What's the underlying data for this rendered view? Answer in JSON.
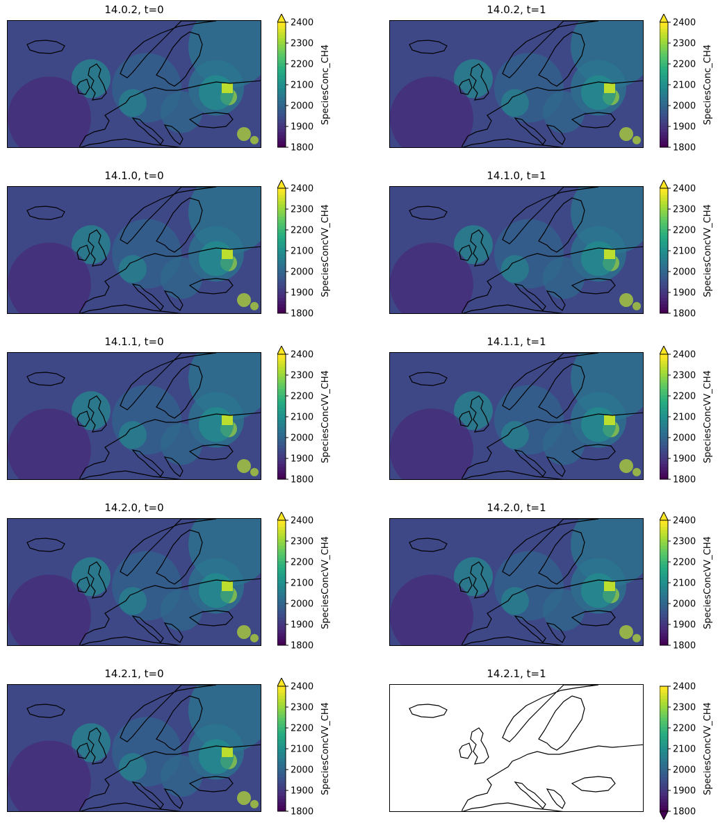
{
  "colorbar": {
    "min": 1800,
    "max": 2400,
    "ticks": [
      "1800",
      "1900",
      "2000",
      "2100",
      "2200",
      "2300",
      "2400"
    ],
    "colors": [
      "#440154",
      "#472c7a",
      "#3b518b",
      "#2c718e",
      "#21908d",
      "#27ad81",
      "#5cc863",
      "#aadc32",
      "#fde725"
    ]
  },
  "panels": [
    {
      "title": "14.0.2, t=0",
      "cbar_label": "SpeciesConc_CH4",
      "empty": false,
      "extend": "max"
    },
    {
      "title": "14.0.2, t=1",
      "cbar_label": "SpeciesConc_CH4",
      "empty": false,
      "extend": "max"
    },
    {
      "title": "14.1.0, t=0",
      "cbar_label": "SpeciesConcVV_CH4",
      "empty": false,
      "extend": "max"
    },
    {
      "title": "14.1.0, t=1",
      "cbar_label": "SpeciesConcVV_CH4",
      "empty": false,
      "extend": "max"
    },
    {
      "title": "14.1.1, t=0",
      "cbar_label": "SpeciesConcVV_CH4",
      "empty": false,
      "extend": "max"
    },
    {
      "title": "14.1.1, t=1",
      "cbar_label": "SpeciesConcVV_CH4",
      "empty": false,
      "extend": "max"
    },
    {
      "title": "14.2.0, t=0",
      "cbar_label": "SpeciesConcVV_CH4",
      "empty": false,
      "extend": "max"
    },
    {
      "title": "14.2.0, t=1",
      "cbar_label": "SpeciesConcVV_CH4",
      "empty": false,
      "extend": "max"
    },
    {
      "title": "14.2.1, t=0",
      "cbar_label": "SpeciesConcVV_CH4",
      "empty": false,
      "extend": "max"
    },
    {
      "title": "14.2.1, t=1",
      "cbar_label": "SpeciesConcVV_CH4",
      "empty": true,
      "extend": "min"
    }
  ],
  "chart_data": {
    "type": "heatmap",
    "description_of_layout": "5x2 grid of map panels of Europe with colorbars",
    "zlim": [
      1800,
      2400
    ],
    "colormap": "viridis"
  }
}
